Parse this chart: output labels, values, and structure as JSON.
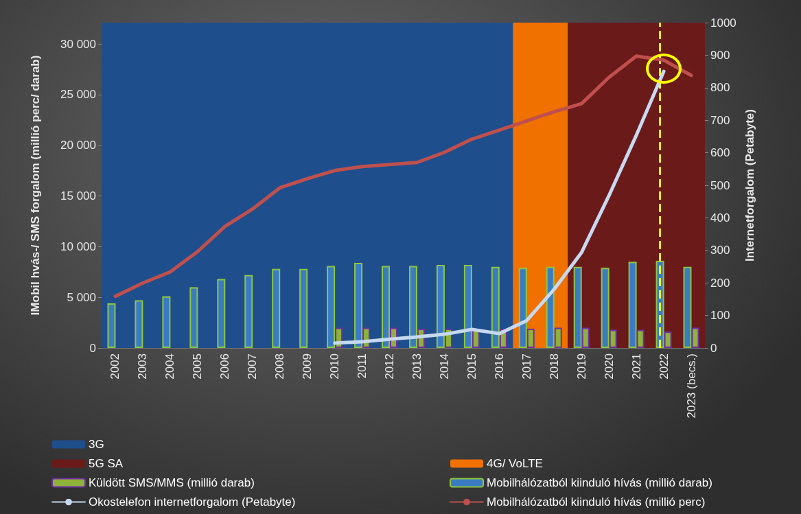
{
  "chart_data": {
    "type": "bar",
    "categories": [
      "2002",
      "2003",
      "2004",
      "2005",
      "2006",
      "2007",
      "2008",
      "2009",
      "2010",
      "2011",
      "2012",
      "2013",
      "2014",
      "2015",
      "2016",
      "2017",
      "2018",
      "2019",
      "2020",
      "2021",
      "2022",
      "2023 (becs.)"
    ],
    "ylabel": "IMobil hvás-/ SMS forgalom (millió perc/ darab)",
    "y2label": "Internetforgalom (Petabyte)",
    "ylim": [
      0,
      32100
    ],
    "yticks": [
      {
        "value": 0,
        "label": "0"
      },
      {
        "value": 5000,
        "label": "5 000"
      },
      {
        "value": 10000,
        "label": "10 000"
      },
      {
        "value": 15000,
        "label": "15 000"
      },
      {
        "value": 20000,
        "label": "20 000"
      },
      {
        "value": 25000,
        "label": "25 000"
      },
      {
        "value": 30000,
        "label": "30 000"
      }
    ],
    "y2lim": [
      0,
      1000
    ],
    "y2ticks": [
      0,
      100,
      200,
      300,
      400,
      500,
      600,
      700,
      800,
      900,
      1000
    ],
    "series": [
      {
        "name": "Mobilhálózatból kiinduló hívás (millió darab)",
        "color": "#3a7cc4",
        "values": [
          4400,
          4700,
          5100,
          6000,
          6800,
          7200,
          7800,
          7800,
          8100,
          8400,
          8100,
          8100,
          8200,
          8200,
          8000,
          7900,
          8000,
          8000,
          7900,
          8500,
          8600,
          8000
        ]
      },
      {
        "name": "Küldött SMS/MMS (millió darab)",
        "color": "#8db33a",
        "values": [
          null,
          null,
          null,
          null,
          null,
          null,
          null,
          null,
          2000,
          2000,
          2000,
          1900,
          1900,
          1900,
          1900,
          1900,
          2000,
          2000,
          1800,
          1800,
          1600,
          2000
        ]
      },
      {
        "name": "Mobilhálózatból kiinduló hívás (millió perc)",
        "type": "line",
        "color": "#c0504d",
        "values": [
          5100,
          6400,
          7500,
          9500,
          12000,
          13700,
          15800,
          16700,
          17500,
          17900,
          18100,
          18300,
          19300,
          20600,
          21500,
          22400,
          23300,
          24100,
          26700,
          28800,
          28400,
          26900
        ]
      },
      {
        "name": "Okostelefon internetforgalom (Petabyte)",
        "type": "line",
        "axis": "y2",
        "color": "#c6d9f1",
        "values": [
          null,
          null,
          null,
          null,
          null,
          null,
          null,
          null,
          15,
          19,
          27,
          34,
          42,
          57,
          44,
          84,
          180,
          293,
          468,
          654,
          850,
          null
        ]
      }
    ],
    "bands": [
      {
        "axis": "x",
        "from": "2002",
        "to": "2016",
        "label": "3G",
        "color": "#1f4e8c"
      },
      {
        "axis": "x",
        "from": "2017",
        "to": "2018",
        "label": "4G/ VoLTE",
        "color": "#f07000"
      },
      {
        "axis": "x",
        "from": "2019",
        "to": "2023 (becs.)",
        "label": "5G SA",
        "color": "#6b1a1a"
      }
    ],
    "ref_lines": [
      {
        "axis": "x",
        "value": "2022",
        "color": "#ffff00",
        "line_style": "dashed"
      }
    ],
    "legend": "bottom",
    "grid": false,
    "marker": "none"
  }
}
